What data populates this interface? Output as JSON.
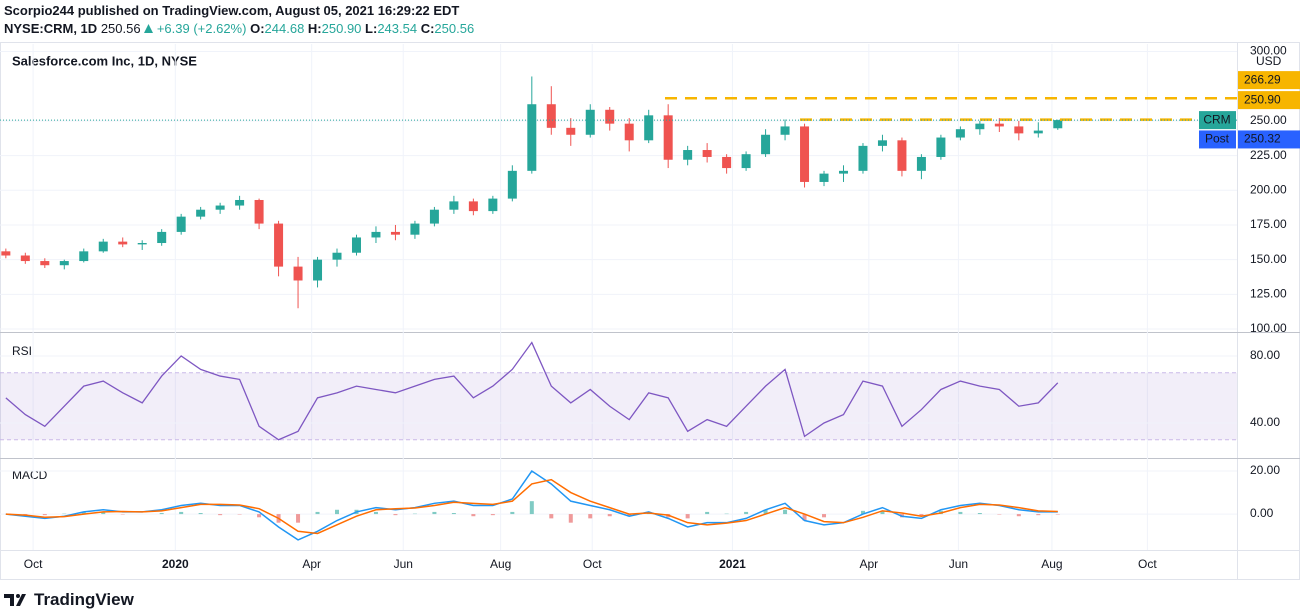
{
  "header": {
    "publisher": "Scorpio244 published on TradingView.com, August 05, 2021 16:29:22 EDT",
    "symbol": "NYSE:CRM, 1D",
    "price": "250.56",
    "change": "+6.39 (+2.62%)",
    "ohlc": [
      {
        "label": "O:",
        "value": "244.68"
      },
      {
        "label": "H:",
        "value": "250.90"
      },
      {
        "label": "L:",
        "value": "243.54"
      },
      {
        "label": "C:",
        "value": "250.56"
      }
    ]
  },
  "chart_data": [
    {
      "type": "candlestick",
      "title": "Salesforce.com Inc, 1D, NYSE",
      "currency": "USD",
      "categories": [
        null,
        null,
        null,
        null,
        null,
        null,
        null,
        null,
        null,
        null,
        null,
        null,
        null,
        null,
        null,
        null,
        null,
        null,
        null,
        null,
        null,
        null,
        null,
        null,
        null,
        null,
        null,
        null,
        null,
        null,
        null,
        null,
        null,
        null,
        null,
        null,
        null,
        null,
        null,
        null,
        null,
        null,
        null,
        null,
        null,
        null,
        null,
        null,
        null,
        null,
        null,
        null,
        null,
        null,
        null
      ],
      "open": [
        156,
        153,
        149,
        146,
        149,
        156,
        163,
        161,
        162,
        170,
        181,
        186,
        189,
        193,
        176,
        145,
        135,
        150,
        155,
        166,
        170,
        168,
        176,
        186,
        192,
        185,
        194,
        214,
        262,
        245,
        240,
        258,
        248,
        236,
        254,
        222,
        229,
        224,
        216,
        226,
        240,
        246,
        206,
        212,
        214,
        232,
        236,
        214,
        224,
        238,
        244,
        248,
        246,
        241,
        244.68
      ],
      "high": [
        158,
        155,
        151,
        150,
        158,
        165,
        166,
        164,
        172,
        183,
        188,
        191,
        196,
        194,
        178,
        152,
        152,
        158,
        168,
        174,
        175,
        178,
        188,
        196,
        194,
        196,
        218,
        282,
        275,
        252,
        262,
        260,
        252,
        258,
        262,
        232,
        234,
        226,
        228,
        244,
        251,
        248,
        214,
        218,
        234,
        240,
        238,
        226,
        240,
        246,
        250,
        252,
        250,
        249,
        250.9
      ],
      "low": [
        151,
        147,
        144,
        143,
        148,
        155,
        159,
        157,
        160,
        168,
        179,
        183,
        186,
        172,
        138,
        115,
        130,
        145,
        153,
        162,
        164,
        165,
        174,
        183,
        182,
        183,
        192,
        212,
        240,
        232,
        238,
        243,
        228,
        234,
        216,
        218,
        220,
        212,
        214,
        224,
        236,
        202,
        203,
        206,
        212,
        228,
        210,
        208,
        222,
        236,
        240,
        242,
        236,
        238,
        243.54
      ],
      "close": [
        153,
        149,
        146,
        149,
        156,
        163,
        161,
        162,
        170,
        181,
        186,
        189,
        193,
        176,
        145,
        135,
        150,
        155,
        166,
        170,
        168,
        176,
        186,
        192,
        185,
        194,
        214,
        262,
        245,
        240,
        258,
        248,
        236,
        254,
        222,
        229,
        224,
        216,
        226,
        240,
        246,
        206,
        212,
        214,
        232,
        236,
        214,
        224,
        238,
        244,
        248,
        246,
        241,
        243,
        250.56
      ],
      "up_color": "#26a69a",
      "down_color": "#ef5350",
      "xlim": [
        -0.3,
        63.2
      ],
      "xticks": [
        {
          "value": 1.4,
          "label": "Oct"
        },
        {
          "value": 8.7,
          "label": "2020"
        },
        {
          "value": 15.7,
          "label": "Apr"
        },
        {
          "value": 20.4,
          "label": "Jun"
        },
        {
          "value": 25.4,
          "label": "Aug"
        },
        {
          "value": 30.1,
          "label": "Oct"
        },
        {
          "value": 37.3,
          "label": "2021"
        },
        {
          "value": 44.3,
          "label": "Apr"
        },
        {
          "value": 48.9,
          "label": "Jun"
        },
        {
          "value": 53.7,
          "label": "Aug"
        },
        {
          "value": 58.6,
          "label": "Oct"
        }
      ],
      "ylim": [
        98.6,
        305.4
      ],
      "yticks": [
        {
          "value": 100,
          "label": "100.00"
        },
        {
          "value": 125,
          "label": "125.00"
        },
        {
          "value": 150,
          "label": "150.00"
        },
        {
          "value": 175,
          "label": "175.00"
        },
        {
          "value": 200,
          "label": "200.00"
        },
        {
          "value": 225,
          "label": "225.00"
        },
        {
          "value": 250,
          "label": "250.00"
        },
        {
          "value": 300,
          "label": "300.00"
        }
      ],
      "last": {
        "name": "CRM",
        "value": 250.56,
        "color": "#26a69a"
      },
      "post": {
        "name": "Post",
        "value": 250.32,
        "color": "#2962ff"
      },
      "levels": [
        {
          "value": 266.29,
          "label": "266.29"
        },
        {
          "value": 250.9,
          "label": "250.90"
        }
      ],
      "level_color": "#f7b500"
    },
    {
      "type": "line",
      "title": "RSI",
      "color": "#7e57c2",
      "values": [
        55,
        45,
        38,
        50,
        62,
        65,
        58,
        52,
        68,
        80,
        72,
        68,
        66,
        38,
        30,
        35,
        55,
        58,
        62,
        60,
        58,
        62,
        66,
        68,
        55,
        62,
        72,
        88,
        62,
        52,
        60,
        50,
        42,
        58,
        55,
        35,
        42,
        38,
        50,
        62,
        72,
        32,
        40,
        45,
        65,
        62,
        38,
        48,
        60,
        65,
        62,
        60,
        50,
        52,
        64
      ],
      "band": [
        30,
        70
      ],
      "ylim": [
        19.1,
        93.7
      ],
      "yticks": [
        {
          "value": 80,
          "label": "80.00"
        },
        {
          "value": 40,
          "label": "40.00"
        }
      ]
    },
    {
      "type": "macd",
      "title": "MACD",
      "macd": {
        "color": "#2196f3",
        "values": [
          0,
          -1,
          -2,
          -1,
          1,
          2,
          1,
          1,
          2,
          4,
          5,
          4,
          4,
          1,
          -6,
          -12,
          -8,
          -3,
          1,
          3,
          2,
          3,
          5,
          6,
          4,
          4,
          7,
          20,
          14,
          6,
          4,
          2,
          -1,
          1,
          -2,
          -6,
          -4,
          -4,
          -2,
          2,
          5,
          -3,
          -5,
          -4,
          0,
          3,
          -1,
          -2,
          2,
          4,
          5,
          4,
          2,
          1,
          1
        ]
      },
      "signal": {
        "color": "#ff6d00",
        "values": [
          0,
          -0.5,
          -1.5,
          -1.2,
          0,
          1,
          1.2,
          1,
          1.5,
          3,
          4.5,
          4.5,
          4.2,
          2.5,
          -2,
          -8,
          -9,
          -5,
          -1,
          2,
          2.5,
          2.8,
          4,
          5.5,
          5,
          4.5,
          6,
          14,
          16,
          10,
          6,
          3,
          0,
          0.5,
          -0.5,
          -4,
          -5,
          -4.2,
          -3,
          0,
          3,
          0,
          -3.5,
          -4,
          -1.5,
          1.5,
          0.5,
          -1,
          0.5,
          3,
          4.5,
          4.2,
          3,
          1.5,
          1.2
        ]
      },
      "histogram": {
        "up_color": "#80cbc4",
        "down_color": "#ef9a9a",
        "values": [
          0,
          -0.5,
          -0.5,
          0.2,
          1,
          1,
          -0.2,
          0,
          0.5,
          1,
          0.5,
          -0.5,
          -0.2,
          -1.5,
          -4,
          -4,
          1,
          2,
          2,
          1,
          -0.5,
          0.2,
          1,
          0.5,
          -1,
          -0.5,
          1,
          6,
          -2,
          -4,
          -2,
          -1,
          -1,
          0.5,
          -1.5,
          -2,
          1,
          0.2,
          1,
          2,
          2,
          -3,
          -1.5,
          0,
          1.5,
          1.5,
          -1.5,
          -1,
          1.5,
          1,
          0.5,
          -0.2,
          -1,
          -0.5,
          -0.2
        ]
      },
      "ylim": [
        -16.7,
        25.6
      ],
      "yticks": [
        {
          "value": 20,
          "label": "20.00"
        },
        {
          "value": 0,
          "label": "0.00"
        }
      ]
    }
  ],
  "footer": {
    "brand": "TradingView"
  }
}
